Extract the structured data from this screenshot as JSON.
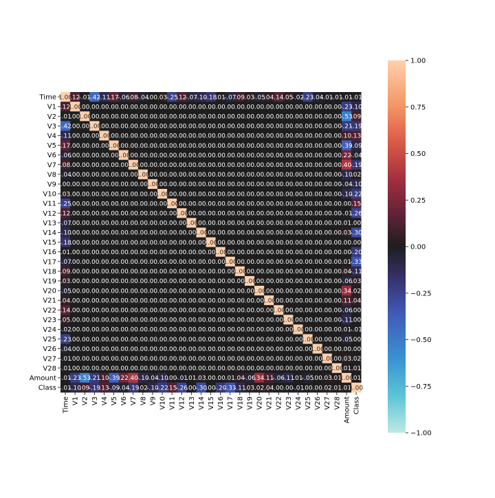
{
  "chart_data": {
    "type": "heatmap",
    "title": "",
    "xlabel": "",
    "ylabel": "",
    "labels": [
      "Time",
      "V1",
      "V2",
      "V3",
      "V4",
      "V5",
      "V6",
      "V7",
      "V8",
      "V9",
      "V10",
      "V11",
      "V12",
      "V13",
      "V14",
      "V15",
      "V16",
      "V17",
      "V18",
      "V19",
      "V20",
      "V21",
      "V22",
      "V23",
      "V24",
      "V25",
      "V26",
      "V27",
      "V28",
      "Amount",
      "Class"
    ],
    "matrix": [
      [
        1.0,
        0.12,
        -0.01,
        -0.42,
        -0.11,
        0.17,
        -0.06,
        0.08,
        -0.04,
        0.0,
        0.03,
        -0.25,
        0.12,
        -0.07,
        -0.1,
        -0.18,
        0.01,
        -0.07,
        0.09,
        0.03,
        -0.05,
        0.04,
        0.14,
        0.05,
        -0.02,
        -0.23,
        -0.04,
        -0.01,
        -0.01,
        -0.01,
        -0.01
      ],
      [
        0.12,
        1.0,
        0.0,
        0.0,
        0.0,
        0.0,
        0.0,
        0.0,
        0.0,
        0.0,
        0.0,
        0.0,
        0.0,
        0.0,
        0.0,
        0.0,
        0.0,
        0.0,
        0.0,
        0.0,
        0.0,
        0.0,
        0.0,
        0.0,
        0.0,
        0.0,
        0.0,
        0.0,
        0.0,
        -0.23,
        -0.1
      ],
      [
        -0.01,
        0.0,
        1.0,
        0.0,
        0.0,
        0.0,
        0.0,
        0.0,
        0.0,
        0.0,
        0.0,
        0.0,
        0.0,
        0.0,
        0.0,
        0.0,
        0.0,
        0.0,
        0.0,
        0.0,
        0.0,
        0.0,
        0.0,
        0.0,
        0.0,
        0.0,
        0.0,
        0.0,
        0.0,
        -0.53,
        0.09
      ],
      [
        -0.42,
        0.0,
        0.0,
        1.0,
        0.0,
        0.0,
        0.0,
        0.0,
        0.0,
        0.0,
        0.0,
        0.0,
        0.0,
        0.0,
        0.0,
        0.0,
        0.0,
        0.0,
        0.0,
        0.0,
        0.0,
        0.0,
        0.0,
        0.0,
        0.0,
        0.0,
        0.0,
        0.0,
        0.0,
        -0.21,
        -0.19
      ],
      [
        -0.11,
        0.0,
        0.0,
        0.0,
        1.0,
        0.0,
        0.0,
        0.0,
        0.0,
        0.0,
        0.0,
        0.0,
        0.0,
        0.0,
        0.0,
        0.0,
        0.0,
        0.0,
        0.0,
        0.0,
        0.0,
        0.0,
        0.0,
        0.0,
        0.0,
        0.0,
        0.0,
        0.0,
        0.0,
        0.1,
        0.13
      ],
      [
        0.17,
        0.0,
        0.0,
        0.0,
        0.0,
        1.0,
        0.0,
        0.0,
        0.0,
        0.0,
        0.0,
        0.0,
        0.0,
        0.0,
        0.0,
        0.0,
        0.0,
        0.0,
        0.0,
        0.0,
        0.0,
        0.0,
        0.0,
        0.0,
        0.0,
        0.0,
        0.0,
        0.0,
        0.0,
        -0.39,
        -0.09
      ],
      [
        -0.06,
        0.0,
        0.0,
        0.0,
        0.0,
        0.0,
        1.0,
        0.0,
        0.0,
        0.0,
        0.0,
        0.0,
        0.0,
        0.0,
        0.0,
        0.0,
        0.0,
        0.0,
        0.0,
        0.0,
        0.0,
        0.0,
        0.0,
        0.0,
        0.0,
        0.0,
        0.0,
        0.0,
        0.0,
        0.22,
        -0.04
      ],
      [
        0.08,
        0.0,
        0.0,
        0.0,
        0.0,
        0.0,
        0.0,
        1.0,
        0.0,
        0.0,
        0.0,
        0.0,
        0.0,
        0.0,
        0.0,
        0.0,
        0.0,
        0.0,
        0.0,
        0.0,
        0.0,
        0.0,
        0.0,
        0.0,
        0.0,
        0.0,
        0.0,
        0.0,
        0.0,
        0.4,
        -0.19
      ],
      [
        -0.04,
        0.0,
        0.0,
        0.0,
        0.0,
        0.0,
        0.0,
        0.0,
        1.0,
        0.0,
        0.0,
        0.0,
        0.0,
        0.0,
        0.0,
        0.0,
        0.0,
        0.0,
        0.0,
        0.0,
        0.0,
        0.0,
        0.0,
        0.0,
        0.0,
        0.0,
        0.0,
        0.0,
        0.0,
        -0.1,
        0.02
      ],
      [
        0.0,
        0.0,
        0.0,
        0.0,
        0.0,
        0.0,
        0.0,
        0.0,
        0.0,
        1.0,
        0.0,
        0.0,
        0.0,
        0.0,
        0.0,
        0.0,
        0.0,
        0.0,
        0.0,
        0.0,
        0.0,
        0.0,
        0.0,
        0.0,
        0.0,
        0.0,
        0.0,
        0.0,
        0.0,
        -0.04,
        -0.1
      ],
      [
        0.03,
        0.0,
        0.0,
        0.0,
        0.0,
        0.0,
        0.0,
        0.0,
        0.0,
        0.0,
        1.0,
        0.0,
        0.0,
        0.0,
        0.0,
        0.0,
        0.0,
        0.0,
        0.0,
        0.0,
        0.0,
        0.0,
        0.0,
        0.0,
        0.0,
        0.0,
        0.0,
        0.0,
        0.0,
        -0.1,
        -0.22
      ],
      [
        -0.25,
        0.0,
        0.0,
        0.0,
        0.0,
        0.0,
        0.0,
        0.0,
        0.0,
        0.0,
        0.0,
        1.0,
        0.0,
        0.0,
        0.0,
        0.0,
        0.0,
        0.0,
        0.0,
        0.0,
        0.0,
        0.0,
        0.0,
        0.0,
        0.0,
        0.0,
        0.0,
        0.0,
        0.0,
        0.0,
        0.15
      ],
      [
        0.12,
        0.0,
        0.0,
        0.0,
        0.0,
        0.0,
        0.0,
        0.0,
        0.0,
        0.0,
        0.0,
        0.0,
        1.0,
        0.0,
        0.0,
        0.0,
        0.0,
        0.0,
        0.0,
        0.0,
        0.0,
        0.0,
        0.0,
        0.0,
        0.0,
        0.0,
        0.0,
        0.0,
        0.0,
        -0.01,
        -0.26
      ],
      [
        -0.07,
        0.0,
        0.0,
        0.0,
        0.0,
        0.0,
        0.0,
        0.0,
        0.0,
        0.0,
        0.0,
        0.0,
        0.0,
        1.0,
        0.0,
        0.0,
        0.0,
        0.0,
        0.0,
        0.0,
        0.0,
        0.0,
        0.0,
        0.0,
        0.0,
        0.0,
        0.0,
        0.0,
        0.0,
        0.01,
        0.0
      ],
      [
        -0.1,
        0.0,
        0.0,
        0.0,
        0.0,
        0.0,
        0.0,
        0.0,
        0.0,
        0.0,
        0.0,
        0.0,
        0.0,
        0.0,
        1.0,
        0.0,
        0.0,
        0.0,
        0.0,
        0.0,
        0.0,
        0.0,
        0.0,
        0.0,
        0.0,
        0.0,
        0.0,
        0.0,
        0.0,
        0.03,
        -0.3
      ],
      [
        -0.18,
        0.0,
        0.0,
        0.0,
        0.0,
        0.0,
        0.0,
        0.0,
        0.0,
        0.0,
        0.0,
        0.0,
        0.0,
        0.0,
        0.0,
        1.0,
        0.0,
        0.0,
        0.0,
        0.0,
        0.0,
        0.0,
        0.0,
        0.0,
        0.0,
        0.0,
        0.0,
        0.0,
        0.0,
        -0.0,
        0.0
      ],
      [
        0.01,
        0.0,
        0.0,
        0.0,
        0.0,
        0.0,
        0.0,
        0.0,
        0.0,
        0.0,
        0.0,
        0.0,
        0.0,
        0.0,
        0.0,
        0.0,
        1.0,
        0.0,
        0.0,
        0.0,
        0.0,
        0.0,
        0.0,
        0.0,
        0.0,
        0.0,
        0.0,
        0.0,
        0.0,
        -0.0,
        -0.2
      ],
      [
        -0.07,
        0.0,
        0.0,
        0.0,
        0.0,
        0.0,
        0.0,
        0.0,
        0.0,
        0.0,
        0.0,
        0.0,
        0.0,
        0.0,
        0.0,
        0.0,
        0.0,
        1.0,
        0.0,
        0.0,
        0.0,
        0.0,
        0.0,
        0.0,
        0.0,
        0.0,
        0.0,
        0.0,
        0.0,
        0.01,
        -0.33
      ],
      [
        0.09,
        0.0,
        0.0,
        0.0,
        0.0,
        0.0,
        0.0,
        0.0,
        0.0,
        0.0,
        0.0,
        0.0,
        0.0,
        0.0,
        0.0,
        0.0,
        0.0,
        0.0,
        1.0,
        0.0,
        0.0,
        0.0,
        0.0,
        0.0,
        0.0,
        0.0,
        0.0,
        0.0,
        0.0,
        0.04,
        -0.11
      ],
      [
        0.03,
        0.0,
        0.0,
        0.0,
        0.0,
        0.0,
        0.0,
        0.0,
        0.0,
        0.0,
        0.0,
        0.0,
        0.0,
        0.0,
        0.0,
        0.0,
        0.0,
        0.0,
        0.0,
        1.0,
        0.0,
        0.0,
        0.0,
        0.0,
        0.0,
        0.0,
        0.0,
        0.0,
        0.0,
        -0.06,
        0.03
      ],
      [
        -0.05,
        0.0,
        0.0,
        0.0,
        0.0,
        0.0,
        0.0,
        0.0,
        0.0,
        0.0,
        0.0,
        0.0,
        0.0,
        0.0,
        0.0,
        0.0,
        0.0,
        0.0,
        0.0,
        0.0,
        1.0,
        0.0,
        0.0,
        0.0,
        0.0,
        0.0,
        0.0,
        0.0,
        0.0,
        0.34,
        0.02
      ],
      [
        0.04,
        0.0,
        0.0,
        0.0,
        0.0,
        0.0,
        0.0,
        0.0,
        0.0,
        0.0,
        0.0,
        0.0,
        0.0,
        0.0,
        0.0,
        0.0,
        0.0,
        0.0,
        0.0,
        0.0,
        0.0,
        1.0,
        0.0,
        0.0,
        0.0,
        0.0,
        0.0,
        0.0,
        0.0,
        0.11,
        0.04
      ],
      [
        0.14,
        0.0,
        0.0,
        0.0,
        0.0,
        0.0,
        0.0,
        0.0,
        0.0,
        0.0,
        0.0,
        0.0,
        0.0,
        0.0,
        0.0,
        0.0,
        0.0,
        0.0,
        0.0,
        0.0,
        0.0,
        0.0,
        1.0,
        0.0,
        0.0,
        0.0,
        0.0,
        0.0,
        0.0,
        -0.06,
        0.0
      ],
      [
        0.05,
        0.0,
        0.0,
        0.0,
        0.0,
        0.0,
        0.0,
        0.0,
        0.0,
        0.0,
        0.0,
        0.0,
        0.0,
        0.0,
        0.0,
        0.0,
        0.0,
        0.0,
        0.0,
        0.0,
        0.0,
        0.0,
        0.0,
        1.0,
        0.0,
        0.0,
        0.0,
        0.0,
        0.0,
        -0.11,
        -0.0
      ],
      [
        -0.02,
        0.0,
        0.0,
        0.0,
        0.0,
        0.0,
        0.0,
        0.0,
        0.0,
        0.0,
        0.0,
        0.0,
        0.0,
        0.0,
        0.0,
        0.0,
        0.0,
        0.0,
        0.0,
        0.0,
        0.0,
        0.0,
        0.0,
        0.0,
        1.0,
        0.0,
        0.0,
        0.0,
        0.0,
        0.01,
        -0.01
      ],
      [
        -0.23,
        0.0,
        0.0,
        0.0,
        0.0,
        0.0,
        0.0,
        0.0,
        0.0,
        0.0,
        0.0,
        0.0,
        0.0,
        0.0,
        0.0,
        0.0,
        0.0,
        0.0,
        0.0,
        0.0,
        0.0,
        0.0,
        0.0,
        0.0,
        0.0,
        1.0,
        0.0,
        0.0,
        0.0,
        -0.05,
        0.0
      ],
      [
        -0.04,
        0.0,
        0.0,
        0.0,
        0.0,
        0.0,
        0.0,
        0.0,
        0.0,
        0.0,
        0.0,
        0.0,
        0.0,
        0.0,
        0.0,
        0.0,
        0.0,
        0.0,
        0.0,
        0.0,
        0.0,
        0.0,
        0.0,
        0.0,
        0.0,
        0.0,
        1.0,
        0.0,
        0.0,
        -0.0,
        0.0
      ],
      [
        -0.01,
        0.0,
        0.0,
        0.0,
        0.0,
        0.0,
        0.0,
        0.0,
        0.0,
        0.0,
        0.0,
        0.0,
        0.0,
        0.0,
        0.0,
        0.0,
        0.0,
        0.0,
        0.0,
        0.0,
        0.0,
        0.0,
        0.0,
        0.0,
        0.0,
        0.0,
        0.0,
        1.0,
        0.0,
        0.03,
        0.02
      ],
      [
        -0.01,
        0.0,
        0.0,
        0.0,
        0.0,
        0.0,
        0.0,
        0.0,
        0.0,
        0.0,
        0.0,
        0.0,
        0.0,
        0.0,
        0.0,
        0.0,
        0.0,
        0.0,
        0.0,
        0.0,
        0.0,
        0.0,
        0.0,
        0.0,
        0.0,
        0.0,
        0.0,
        0.0,
        1.0,
        0.01,
        0.01
      ],
      [
        -0.01,
        -0.23,
        -0.53,
        -0.21,
        0.1,
        -0.39,
        0.22,
        0.4,
        -0.1,
        -0.04,
        -0.1,
        0.0,
        -0.01,
        0.01,
        0.03,
        -0.0,
        -0.0,
        0.01,
        0.04,
        -0.06,
        0.34,
        0.11,
        -0.06,
        -0.11,
        0.01,
        -0.05,
        -0.0,
        0.03,
        0.01,
        1.0,
        0.01
      ],
      [
        -0.01,
        -0.1,
        0.09,
        -0.19,
        0.13,
        -0.09,
        -0.04,
        -0.19,
        0.02,
        -0.1,
        -0.22,
        0.15,
        -0.26,
        0.0,
        -0.3,
        0.0,
        -0.2,
        -0.33,
        -0.11,
        0.03,
        0.02,
        0.04,
        0.0,
        -0.0,
        -0.01,
        0.0,
        0.0,
        0.02,
        0.01,
        0.01,
        1.0
      ]
    ],
    "vmin": -1.0,
    "vmax": 1.0,
    "colorbar_ticks": [
      -1.0,
      -0.75,
      -0.5,
      -0.25,
      0.0,
      0.25,
      0.5,
      0.75,
      1.0
    ],
    "colormap": "icefire",
    "annotations": true,
    "annotation_format": "2 decimals"
  }
}
